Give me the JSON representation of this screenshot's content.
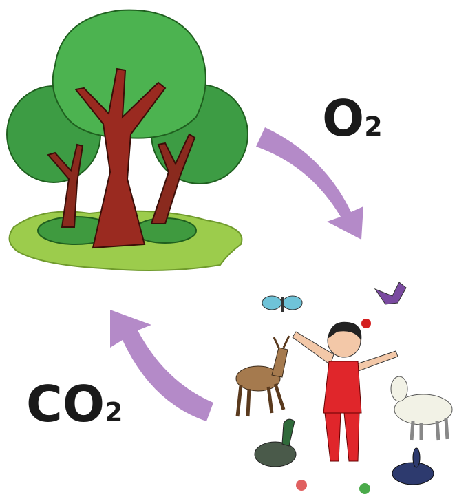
{
  "labels": [
    {
      "symbol": "O",
      "subscript": "2"
    },
    {
      "symbol": "CO",
      "subscript": "2"
    }
  ]
}
